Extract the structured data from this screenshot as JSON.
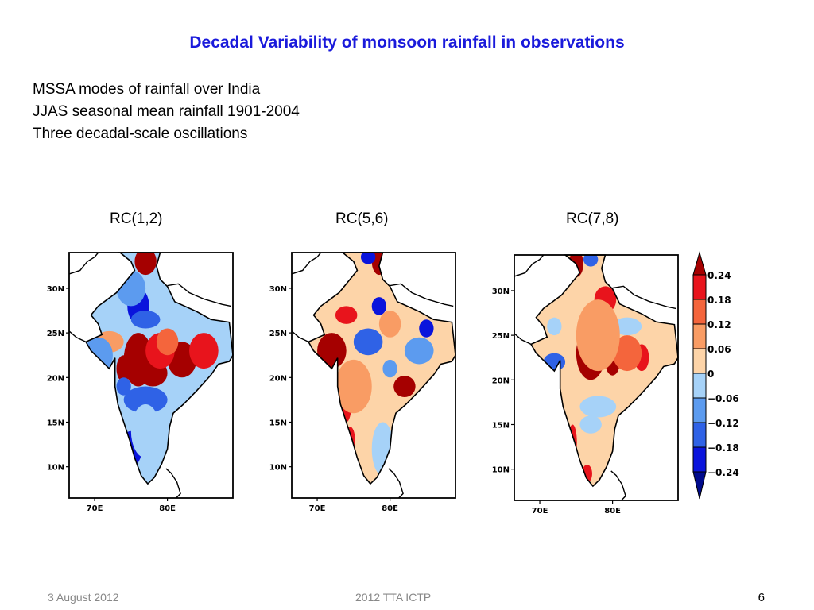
{
  "slide": {
    "title": "Decadal Variability of monsoon rainfall in observations",
    "bullets": [
      "MSSA modes of rainfall over India",
      "JJAS seasonal mean rainfall 1901-2004",
      "Three decadal-scale oscillations"
    ],
    "footer": {
      "date": "3 August 2012",
      "center": "2012  TTA   ICTP",
      "page": "6"
    }
  },
  "chart_data": [
    {
      "type": "heatmap",
      "title": "RC(1,2)",
      "x_ticks": [
        "70E",
        "80E"
      ],
      "y_ticks": [
        "30N",
        "25N",
        "20N",
        "15N",
        "10N"
      ],
      "description": "Positive (red) anomalies over central India 20N-25N and far north; negative (blue) over northwest, Gujarat, south peninsula"
    },
    {
      "type": "heatmap",
      "title": "RC(5,6)",
      "x_ticks": [
        "70E",
        "80E"
      ],
      "y_ticks": [
        "30N",
        "25N",
        "20N",
        "15N",
        "10N"
      ],
      "description": "Positive anomalies over northwest/Gujarat and west coast, east coast near 19N; negative over central-north and south-east peninsula"
    },
    {
      "type": "heatmap",
      "title": "RC(7,8)",
      "x_ticks": [
        "70E",
        "80E"
      ],
      "y_ticks": [
        "30N",
        "25N",
        "20N",
        "15N",
        "10N"
      ],
      "description": "Strong positive over central India 21N-26N and north; weak positive elsewhere; negative patches over Gujarat and northeast"
    }
  ],
  "colorbar": {
    "labels": [
      "0.24",
      "0.18",
      "0.12",
      "0.06",
      "0",
      "−0.06",
      "−0.12",
      "−0.18",
      "−0.24"
    ],
    "colors": [
      "#a50000",
      "#e8141c",
      "#f4653c",
      "#f99c64",
      "#fdd4a8",
      "#a6d2f8",
      "#5c9bef",
      "#2f62e6",
      "#0a14dc",
      "#000a8c"
    ]
  }
}
